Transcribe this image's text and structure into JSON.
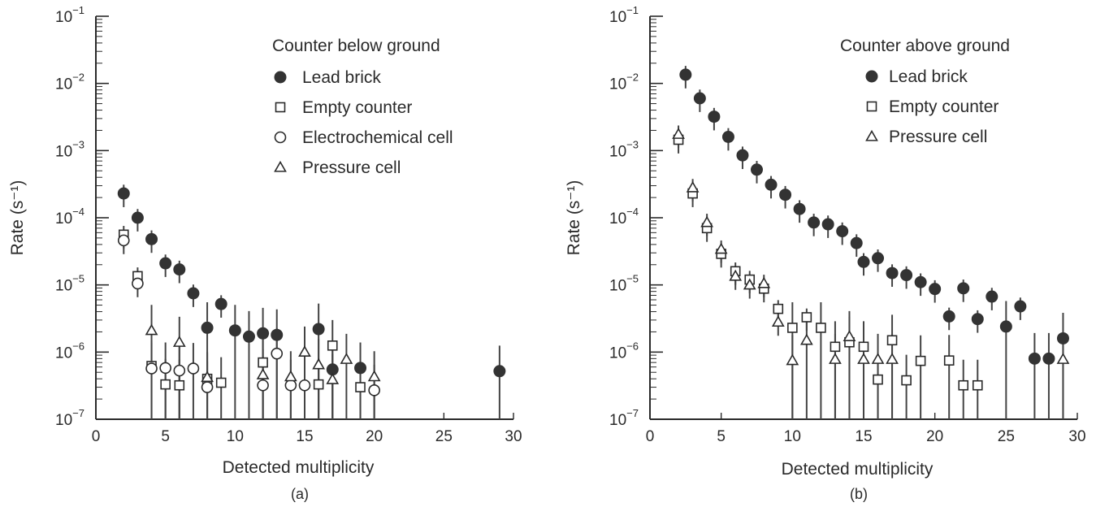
{
  "chart_data": [
    {
      "type": "scatter",
      "panel_label": "(a)",
      "xlabel": "Detected multiplicity",
      "ylabel": "Rate (s⁻¹)",
      "xlim": [
        0,
        30
      ],
      "ylim": [
        1e-07,
        0.1
      ],
      "yscale": "log",
      "x_ticks": [
        "0",
        "5",
        "10",
        "15",
        "20",
        "25",
        "30"
      ],
      "y_ticks": [
        {
          "base": "10",
          "exp": "−1"
        },
        {
          "base": "10",
          "exp": "−2"
        },
        {
          "base": "10",
          "exp": "−3"
        },
        {
          "base": "10",
          "exp": "−4"
        },
        {
          "base": "10",
          "exp": "−5"
        },
        {
          "base": "10",
          "exp": "−6"
        },
        {
          "base": "10",
          "exp": "−7"
        }
      ],
      "legend_title": "Counter below ground",
      "legend_position": "top-right",
      "series": [
        {
          "name": "Lead brick",
          "marker": "filled-circle",
          "points": [
            {
              "x": 2,
              "y": 0.00023
            },
            {
              "x": 3,
              "y": 0.0001
            },
            {
              "x": 4,
              "y": 4.8e-05
            },
            {
              "x": 5,
              "y": 2.1e-05
            },
            {
              "x": 6,
              "y": 1.7e-05
            },
            {
              "x": 7,
              "y": 7.5e-06
            },
            {
              "x": 8,
              "y": 2.3e-06
            },
            {
              "x": 9,
              "y": 5.2e-06
            },
            {
              "x": 10,
              "y": 2.1e-06
            },
            {
              "x": 11,
              "y": 1.7e-06
            },
            {
              "x": 12,
              "y": 1.9e-06
            },
            {
              "x": 13,
              "y": 1.8e-06
            },
            {
              "x": 16,
              "y": 2.2e-06
            },
            {
              "x": 17,
              "y": 5.5e-07
            },
            {
              "x": 19,
              "y": 5.8e-07
            },
            {
              "x": 29,
              "y": 5.2e-07
            }
          ]
        },
        {
          "name": "Empty counter",
          "marker": "open-square",
          "points": [
            {
              "x": 2,
              "y": 5.6e-05
            },
            {
              "x": 3,
              "y": 1.35e-05
            },
            {
              "x": 4,
              "y": 6.2e-07
            },
            {
              "x": 5,
              "y": 3.3e-07
            },
            {
              "x": 6,
              "y": 3.2e-07
            },
            {
              "x": 8,
              "y": 4e-07
            },
            {
              "x": 9,
              "y": 3.5e-07
            },
            {
              "x": 12,
              "y": 7e-07
            },
            {
              "x": 16,
              "y": 3.3e-07
            },
            {
              "x": 17,
              "y": 1.25e-06
            },
            {
              "x": 19,
              "y": 3e-07
            }
          ]
        },
        {
          "name": "Electrochemical cell",
          "marker": "open-circle",
          "points": [
            {
              "x": 2,
              "y": 4.6e-05
            },
            {
              "x": 3,
              "y": 1.05e-05
            },
            {
              "x": 4,
              "y": 5.7e-07
            },
            {
              "x": 5,
              "y": 5.8e-07
            },
            {
              "x": 6,
              "y": 5.3e-07
            },
            {
              "x": 7,
              "y": 5.7e-07
            },
            {
              "x": 8,
              "y": 3e-07
            },
            {
              "x": 12,
              "y": 3.2e-07
            },
            {
              "x": 13,
              "y": 9.5e-07
            },
            {
              "x": 14,
              "y": 3.2e-07
            },
            {
              "x": 15,
              "y": 3.2e-07
            },
            {
              "x": 20,
              "y": 2.7e-07
            }
          ]
        },
        {
          "name": "Pressure cell",
          "marker": "open-triangle",
          "points": [
            {
              "x": 4,
              "y": 2.1e-06
            },
            {
              "x": 6,
              "y": 1.4e-06
            },
            {
              "x": 8,
              "y": 4.2e-07
            },
            {
              "x": 12,
              "y": 4.6e-07
            },
            {
              "x": 14,
              "y": 4.3e-07
            },
            {
              "x": 15,
              "y": 1e-06
            },
            {
              "x": 16,
              "y": 6.5e-07
            },
            {
              "x": 17,
              "y": 3.9e-07
            },
            {
              "x": 18,
              "y": 7.8e-07
            },
            {
              "x": 20,
              "y": 4.3e-07
            }
          ]
        }
      ]
    },
    {
      "type": "scatter",
      "panel_label": "(b)",
      "xlabel": "Detected multiplicity",
      "ylabel": "Rate (s⁻¹)",
      "xlim": [
        0,
        30
      ],
      "ylim": [
        1e-07,
        0.1
      ],
      "yscale": "log",
      "x_ticks": [
        "0",
        "5",
        "10",
        "15",
        "20",
        "25",
        "30"
      ],
      "y_ticks": [
        {
          "base": "10",
          "exp": "−1"
        },
        {
          "base": "10",
          "exp": "−2"
        },
        {
          "base": "10",
          "exp": "−3"
        },
        {
          "base": "10",
          "exp": "−4"
        },
        {
          "base": "10",
          "exp": "−5"
        },
        {
          "base": "10",
          "exp": "−6"
        },
        {
          "base": "10",
          "exp": "−7"
        }
      ],
      "legend_title": "Counter above ground",
      "legend_position": "top-right",
      "series": [
        {
          "name": "Lead brick",
          "marker": "filled-circle",
          "points": [
            {
              "x": 2.5,
              "y": 0.0135
            },
            {
              "x": 3.5,
              "y": 0.006
            },
            {
              "x": 4.5,
              "y": 0.0032
            },
            {
              "x": 5.5,
              "y": 0.0016
            },
            {
              "x": 6.5,
              "y": 0.00085
            },
            {
              "x": 7.5,
              "y": 0.00052
            },
            {
              "x": 8.5,
              "y": 0.00031
            },
            {
              "x": 9.5,
              "y": 0.00022
            },
            {
              "x": 10.5,
              "y": 0.000135
            },
            {
              "x": 11.5,
              "y": 8.5e-05
            },
            {
              "x": 12.5,
              "y": 8e-05
            },
            {
              "x": 13.5,
              "y": 6.3e-05
            },
            {
              "x": 14.5,
              "y": 4.2e-05
            },
            {
              "x": 15,
              "y": 2.2e-05
            },
            {
              "x": 16,
              "y": 2.5e-05
            },
            {
              "x": 17,
              "y": 1.5e-05
            },
            {
              "x": 18,
              "y": 1.4e-05
            },
            {
              "x": 19,
              "y": 1.1e-05
            },
            {
              "x": 20,
              "y": 8.7e-06
            },
            {
              "x": 21,
              "y": 3.4e-06
            },
            {
              "x": 22,
              "y": 8.9e-06
            },
            {
              "x": 23,
              "y": 3.1e-06
            },
            {
              "x": 24,
              "y": 6.7e-06
            },
            {
              "x": 25,
              "y": 2.4e-06
            },
            {
              "x": 26,
              "y": 4.8e-06
            },
            {
              "x": 27,
              "y": 8e-07
            },
            {
              "x": 28,
              "y": 8e-07
            },
            {
              "x": 29,
              "y": 1.6e-06
            }
          ]
        },
        {
          "name": "Empty counter",
          "marker": "open-square",
          "points": [
            {
              "x": 2,
              "y": 0.00145
            },
            {
              "x": 3,
              "y": 0.00023
            },
            {
              "x": 4,
              "y": 7e-05
            },
            {
              "x": 5,
              "y": 2.9e-05
            },
            {
              "x": 6,
              "y": 1.6e-05
            },
            {
              "x": 7,
              "y": 1.2e-05
            },
            {
              "x": 8,
              "y": 8.8e-06
            },
            {
              "x": 9,
              "y": 4.4e-06
            },
            {
              "x": 10,
              "y": 2.3e-06
            },
            {
              "x": 11,
              "y": 3.3e-06
            },
            {
              "x": 12,
              "y": 2.3e-06
            },
            {
              "x": 13,
              "y": 1.2e-06
            },
            {
              "x": 14,
              "y": 1.4e-06
            },
            {
              "x": 15,
              "y": 1.2e-06
            },
            {
              "x": 16,
              "y": 3.9e-07
            },
            {
              "x": 17,
              "y": 1.5e-06
            },
            {
              "x": 18,
              "y": 3.8e-07
            },
            {
              "x": 19,
              "y": 7.4e-07
            },
            {
              "x": 21,
              "y": 7.5e-07
            },
            {
              "x": 22,
              "y": 3.2e-07
            },
            {
              "x": 23,
              "y": 3.2e-07
            }
          ]
        },
        {
          "name": "Pressure cell",
          "marker": "open-triangle",
          "points": [
            {
              "x": 2,
              "y": 0.00175
            },
            {
              "x": 3,
              "y": 0.00028
            },
            {
              "x": 4,
              "y": 8.5e-05
            },
            {
              "x": 5,
              "y": 3.4e-05
            },
            {
              "x": 6,
              "y": 1.35e-05
            },
            {
              "x": 7,
              "y": 1e-05
            },
            {
              "x": 8,
              "y": 1.05e-05
            },
            {
              "x": 9,
              "y": 2.8e-06
            },
            {
              "x": 10,
              "y": 7.5e-07
            },
            {
              "x": 11,
              "y": 1.5e-06
            },
            {
              "x": 13,
              "y": 7.8e-07
            },
            {
              "x": 14,
              "y": 1.7e-06
            },
            {
              "x": 15,
              "y": 7.8e-07
            },
            {
              "x": 16,
              "y": 7.8e-07
            },
            {
              "x": 17,
              "y": 7.8e-07
            },
            {
              "x": 29,
              "y": 7.8e-07
            }
          ]
        }
      ]
    }
  ]
}
